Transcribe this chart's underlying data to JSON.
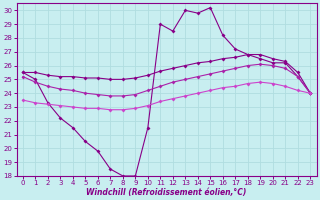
{
  "xlabel": "Windchill (Refroidissement éolien,°C)",
  "xlim": [
    -0.5,
    23.5
  ],
  "ylim": [
    18,
    30.5
  ],
  "yticks": [
    18,
    19,
    20,
    21,
    22,
    23,
    24,
    25,
    26,
    27,
    28,
    29,
    30
  ],
  "xticks": [
    0,
    1,
    2,
    3,
    4,
    5,
    6,
    7,
    8,
    9,
    10,
    11,
    12,
    13,
    14,
    15,
    16,
    17,
    18,
    19,
    20,
    21,
    22,
    23
  ],
  "background_color": "#c8eef0",
  "grid_color": "#b0dde0",
  "color_dark": "#880088",
  "color_mid": "#aa22aa",
  "color_light": "#cc44cc",
  "jagged_x": [
    0,
    1,
    2,
    3,
    4,
    5,
    6,
    7,
    8,
    9,
    10,
    11,
    12,
    13,
    14,
    15,
    16,
    17,
    18,
    19,
    20,
    21,
    22,
    23
  ],
  "jagged_y": [
    25.5,
    25.0,
    23.3,
    22.2,
    21.5,
    20.5,
    19.8,
    18.5,
    18.0,
    18.0,
    21.5,
    29.0,
    28.5,
    30.0,
    29.8,
    30.2,
    28.2,
    27.2,
    26.8,
    26.5,
    26.2,
    26.2,
    25.2,
    24.0
  ],
  "upper_x": [
    0,
    1,
    2,
    3,
    4,
    5,
    6,
    7,
    8,
    9,
    10,
    11,
    12,
    13,
    14,
    15,
    16,
    17,
    18,
    19,
    20,
    21,
    22,
    23
  ],
  "upper_y": [
    25.5,
    25.5,
    25.3,
    25.2,
    25.2,
    25.1,
    25.1,
    25.0,
    25.0,
    25.1,
    25.3,
    25.6,
    25.8,
    26.0,
    26.2,
    26.3,
    26.5,
    26.6,
    26.8,
    26.8,
    26.5,
    26.3,
    25.5,
    24.0
  ],
  "mid_x": [
    0,
    1,
    2,
    3,
    4,
    5,
    6,
    7,
    8,
    9,
    10,
    11,
    12,
    13,
    14,
    15,
    16,
    17,
    18,
    19,
    20,
    21,
    22,
    23
  ],
  "mid_y": [
    25.2,
    24.8,
    24.5,
    24.3,
    24.2,
    24.0,
    23.9,
    23.8,
    23.8,
    23.9,
    24.2,
    24.5,
    24.8,
    25.0,
    25.2,
    25.4,
    25.6,
    25.8,
    26.0,
    26.1,
    26.0,
    25.8,
    25.2,
    24.0
  ],
  "lower_x": [
    0,
    1,
    2,
    3,
    4,
    5,
    6,
    7,
    8,
    9,
    10,
    11,
    12,
    13,
    14,
    15,
    16,
    17,
    18,
    19,
    20,
    21,
    22,
    23
  ],
  "lower_y": [
    23.5,
    23.3,
    23.2,
    23.1,
    23.0,
    22.9,
    22.9,
    22.8,
    22.8,
    22.9,
    23.1,
    23.4,
    23.6,
    23.8,
    24.0,
    24.2,
    24.4,
    24.5,
    24.7,
    24.8,
    24.7,
    24.5,
    24.2,
    24.0
  ]
}
